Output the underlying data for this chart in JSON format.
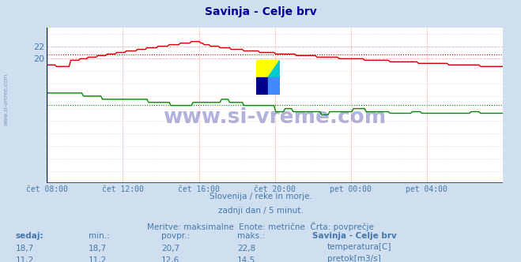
{
  "title": "Savinja - Celje brv",
  "title_color": "#000099",
  "bg_color": "#d0dff0",
  "plot_bg_color": "#ffffff",
  "grid_color": "#ffaaaa",
  "axis_color": "#0000cc",
  "text_color": "#4477aa",
  "watermark_text": "www.si-vreme.com",
  "watermark_color": "#000088",
  "xlabels": [
    "čet 08:00",
    "čet 12:00",
    "čet 16:00",
    "čet 20:00",
    "pet 00:00",
    "pet 04:00"
  ],
  "ylim": [
    0,
    25
  ],
  "yticks": [
    20,
    22
  ],
  "n_points": 288,
  "temp_color": "#cc0000",
  "temp_avg": 20.7,
  "flow_color": "#008800",
  "flow_avg": 12.6,
  "subtitle1": "Slovenija / reke in morje.",
  "subtitle2": "zadnji dan / 5 minut.",
  "subtitle3": "Meritve: maksimalne  Enote: metrične  Črta: povprečje",
  "legend_title": "Savinja - Celje brv",
  "sedaj_temp": 18.7,
  "sedaj_flow": 11.2,
  "min_temp": 18.7,
  "min_flow": 11.2,
  "povpr_temp": 20.7,
  "povpr_flow": 12.6,
  "maks_temp": 22.8,
  "maks_flow": 14.5
}
